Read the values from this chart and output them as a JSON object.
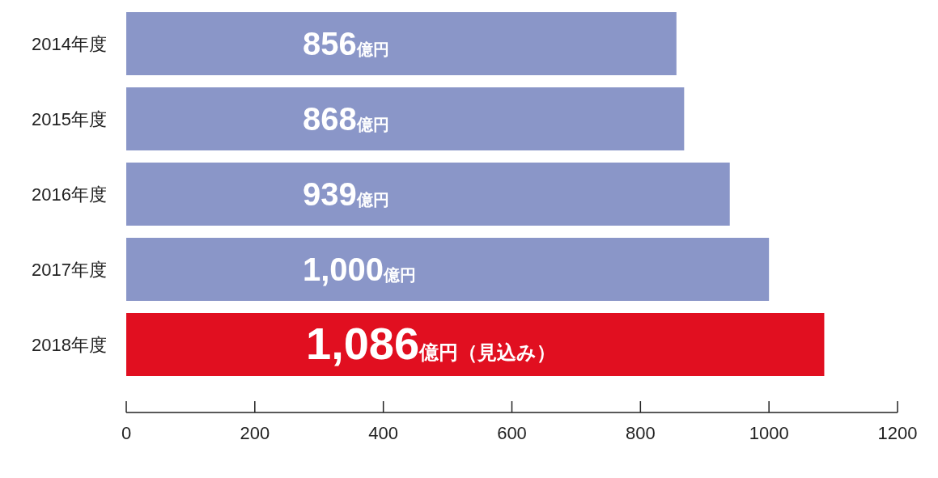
{
  "chart_data": {
    "type": "bar",
    "orientation": "horizontal",
    "categories": [
      "2014年度",
      "2015年度",
      "2016年度",
      "2017年度",
      "2018年度"
    ],
    "values": [
      856,
      868,
      939,
      1000,
      1086
    ],
    "colors": [
      "#8a96c8",
      "#8a96c8",
      "#8a96c8",
      "#8a96c8",
      "#e10f20"
    ],
    "value_labels": [
      "856億円",
      "868億円",
      "939億円",
      "1,000億円",
      "1,086億円（見込み）"
    ],
    "xlim": [
      0,
      1200
    ],
    "xticks": [
      0,
      200,
      400,
      600,
      800,
      1000,
      1200
    ],
    "grid": false
  }
}
